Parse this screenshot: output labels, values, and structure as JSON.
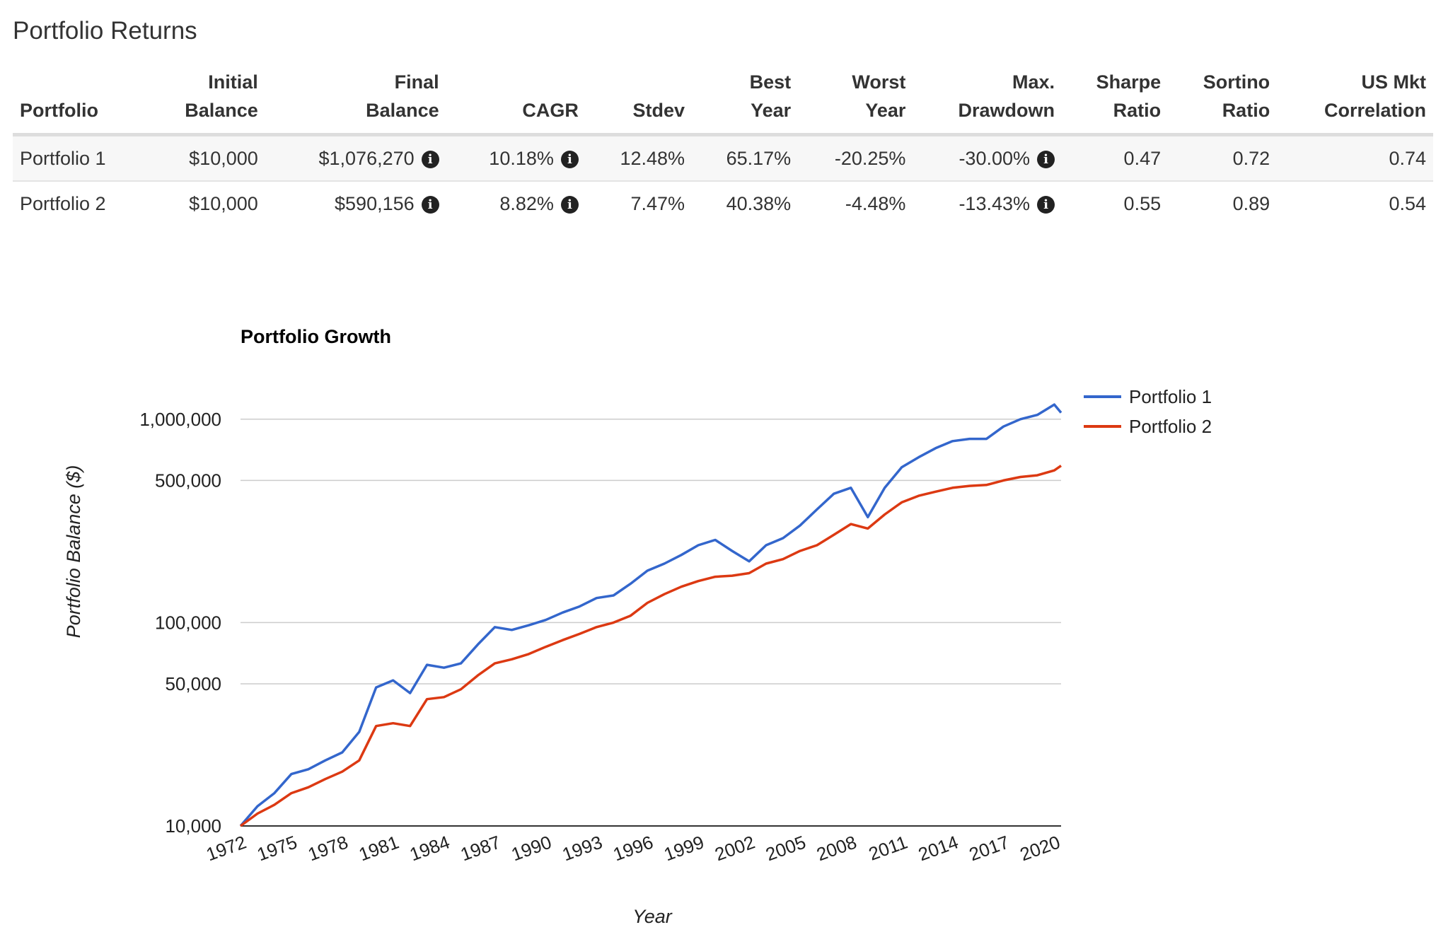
{
  "page_title": "Portfolio Returns",
  "table": {
    "headers": [
      {
        "line1": "",
        "line2": "Portfolio"
      },
      {
        "line1": "Initial",
        "line2": "Balance"
      },
      {
        "line1": "Final",
        "line2": "Balance"
      },
      {
        "line1": "",
        "line2": "CAGR"
      },
      {
        "line1": "",
        "line2": "Stdev"
      },
      {
        "line1": "Best",
        "line2": "Year"
      },
      {
        "line1": "Worst",
        "line2": "Year"
      },
      {
        "line1": "Max.",
        "line2": "Drawdown"
      },
      {
        "line1": "Sharpe",
        "line2": "Ratio"
      },
      {
        "line1": "Sortino",
        "line2": "Ratio"
      },
      {
        "line1": "US Mkt",
        "line2": "Correlation"
      }
    ],
    "rows": [
      {
        "portfolio": "Portfolio 1",
        "initial_balance": "$10,000",
        "final_balance": "$1,076,270",
        "cagr": "10.18%",
        "stdev": "12.48%",
        "best_year": "65.17%",
        "worst_year": "-20.25%",
        "max_drawdown": "-30.00%",
        "sharpe_ratio": "0.47",
        "sortino_ratio": "0.72",
        "us_mkt_correlation": "0.74"
      },
      {
        "portfolio": "Portfolio 2",
        "initial_balance": "$10,000",
        "final_balance": "$590,156",
        "cagr": "8.82%",
        "stdev": "7.47%",
        "best_year": "40.38%",
        "worst_year": "-4.48%",
        "max_drawdown": "-13.43%",
        "sharpe_ratio": "0.55",
        "sortino_ratio": "0.89",
        "us_mkt_correlation": "0.54"
      }
    ],
    "info_icon_glyph": "i",
    "icon": "info-circle-icon"
  },
  "chart_data": {
    "type": "line",
    "title": "Portfolio Growth",
    "xlabel": "Year",
    "ylabel": "Portfolio Balance ($)",
    "y_scale": "log",
    "ylim": [
      10000,
      1300000
    ],
    "xlim": [
      1972,
      2020.4
    ],
    "x_ticks": [
      "1972",
      "1975",
      "1978",
      "1981",
      "1984",
      "1987",
      "1990",
      "1993",
      "1996",
      "1999",
      "2002",
      "2005",
      "2008",
      "2011",
      "2014",
      "2017",
      "2020"
    ],
    "y_ticks": [
      {
        "value": 10000,
        "label": "10,000"
      },
      {
        "value": 50000,
        "label": "50,000"
      },
      {
        "value": 100000,
        "label": "100,000"
      },
      {
        "value": 500000,
        "label": "500,000"
      },
      {
        "value": 1000000,
        "label": "1,000,000"
      }
    ],
    "grid": true,
    "legend_position": "right",
    "x": [
      1972,
      1973,
      1974,
      1975,
      1976,
      1977,
      1978,
      1979,
      1980,
      1981,
      1982,
      1983,
      1984,
      1985,
      1986,
      1987,
      1988,
      1989,
      1990,
      1991,
      1992,
      1993,
      1994,
      1995,
      1996,
      1997,
      1998,
      1999,
      2000,
      2001,
      2002,
      2003,
      2004,
      2005,
      2006,
      2007,
      2008,
      2009,
      2010,
      2011,
      2012,
      2013,
      2014,
      2015,
      2016,
      2017,
      2018,
      2019,
      2020,
      2020.4
    ],
    "series": [
      {
        "name": "Portfolio 1",
        "color": "#3366cc",
        "values": [
          10000,
          12500,
          14500,
          18000,
          19000,
          21000,
          23000,
          29000,
          48000,
          52000,
          45000,
          62000,
          60000,
          63000,
          78000,
          95000,
          92000,
          97000,
          103000,
          112000,
          120000,
          132000,
          136000,
          155000,
          180000,
          195000,
          215000,
          240000,
          255000,
          225000,
          200000,
          240000,
          260000,
          300000,
          360000,
          430000,
          460000,
          330000,
          460000,
          580000,
          650000,
          720000,
          780000,
          800000,
          800000,
          920000,
          1000000,
          1050000,
          1180000,
          1076270
        ]
      },
      {
        "name": "Portfolio 2",
        "color": "#dc3912",
        "values": [
          10000,
          11500,
          12700,
          14500,
          15500,
          17000,
          18500,
          21000,
          31000,
          32000,
          31000,
          42000,
          43000,
          47000,
          55000,
          63000,
          66000,
          70000,
          76000,
          82000,
          88000,
          95000,
          100000,
          108000,
          125000,
          138000,
          150000,
          160000,
          168000,
          170000,
          175000,
          195000,
          205000,
          225000,
          240000,
          270000,
          305000,
          290000,
          340000,
          390000,
          420000,
          440000,
          460000,
          470000,
          475000,
          500000,
          520000,
          530000,
          560000,
          590156
        ]
      }
    ]
  }
}
